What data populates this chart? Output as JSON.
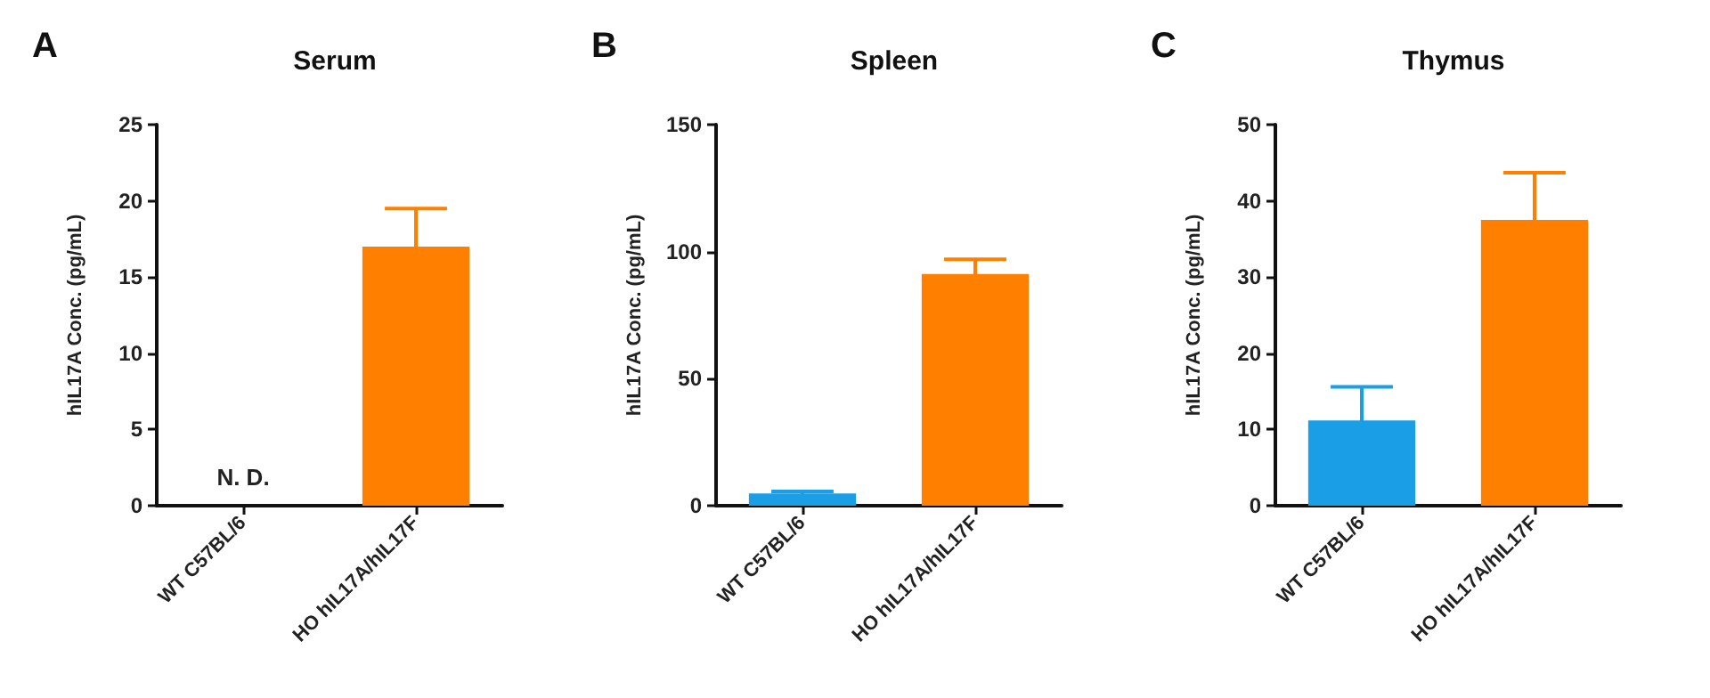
{
  "chart_data": [
    {
      "type": "bar",
      "title": "Serum",
      "ylabel": "hIL17A Conc. (pg/mL)",
      "categories": [
        "WT C57BL/6",
        "HO hIL17A/hIL17F"
      ],
      "values": [
        null,
        17.0
      ],
      "errors": [
        null,
        2.5
      ],
      "colors": [
        "#1a9ee6",
        "#ff8000"
      ],
      "ylim": [
        0,
        25
      ],
      "yticks": [
        0,
        5,
        10,
        15,
        20,
        25
      ],
      "grid": false,
      "annotations": [
        "A",
        "N. D."
      ]
    },
    {
      "type": "bar",
      "title": "Spleen",
      "ylabel": "hIL17A Conc. (pg/mL)",
      "categories": [
        "WT C57BL/6",
        "HO hIL17A/hIL17F"
      ],
      "values": [
        4.8,
        91.2
      ],
      "errors": [
        0.8,
        5.8
      ],
      "colors": [
        "#1a9ee6",
        "#ff8000"
      ],
      "ylim": [
        0,
        150
      ],
      "yticks": [
        0,
        50,
        100,
        150
      ],
      "grid": false,
      "annotations": [
        "B"
      ]
    },
    {
      "type": "bar",
      "title": "Thymus",
      "ylabel": "hIL17A Conc. (pg/mL)",
      "categories": [
        "WT C57BL/6",
        "HO hIL17A/hIL17F"
      ],
      "values": [
        11.2,
        37.5
      ],
      "errors": [
        4.4,
        6.2
      ],
      "colors": [
        "#1a9ee6",
        "#ff8000"
      ],
      "ylim": [
        0,
        50
      ],
      "yticks": [
        0,
        10,
        20,
        30,
        40,
        50
      ],
      "grid": false,
      "annotations": [
        "C"
      ]
    }
  ]
}
